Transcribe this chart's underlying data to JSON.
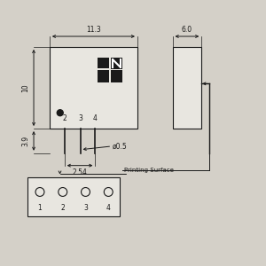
{
  "bg_color": "#d4d0c8",
  "line_color": "#1a1a1a",
  "fill_color": "#e8e6e0",
  "dark_fill": "#1a1a1a",
  "dim_11_3": "11.3",
  "dim_6_0": "6.0",
  "dim_10": "10",
  "dim_3_9": "3.9",
  "dim_2_54": "2.54",
  "dim_phi": "ø0.5",
  "label_printing": "Printing Surface",
  "pin_labels": [
    "1",
    "2",
    "3",
    "4"
  ],
  "pin_nums": [
    "2",
    "3",
    "4"
  ]
}
